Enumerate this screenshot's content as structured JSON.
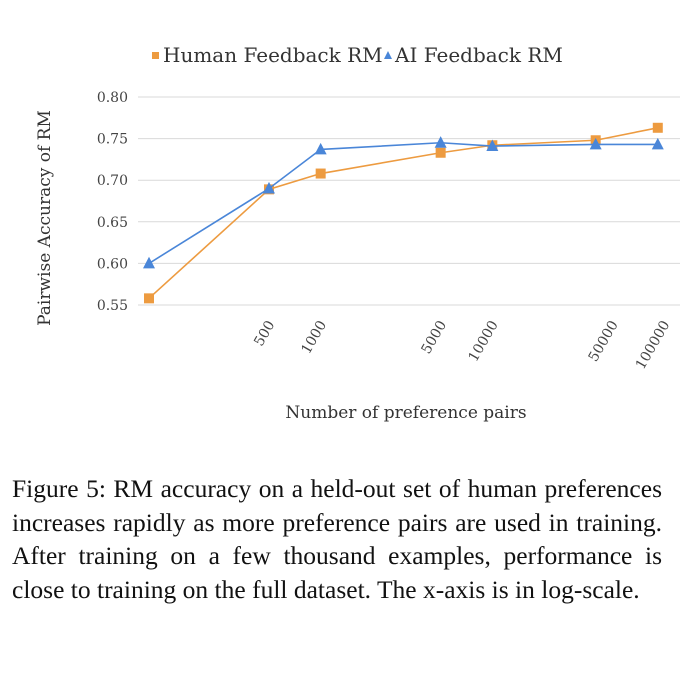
{
  "chart_data": {
    "type": "line",
    "xscale": "log",
    "xlabel": "Number of preference pairs",
    "ylabel": "Pairwise Accuracy of RM",
    "xticks": [
      500,
      1000,
      5000,
      10000,
      50000,
      100000
    ],
    "yticks": [
      "0.55",
      "0.60",
      "0.65",
      "0.70",
      "0.75",
      "0.80"
    ],
    "ylim": [
      0.55,
      0.8
    ],
    "grid": "horizontal",
    "legend": "top-center",
    "series": [
      {
        "name": "Human Feedback RM",
        "marker": "square",
        "color": "#ED9B40",
        "x": [
          100,
          500,
          1000,
          5000,
          10000,
          40000,
          92000
        ],
        "y": [
          0.558,
          0.689,
          0.708,
          0.733,
          0.742,
          0.748,
          0.763
        ]
      },
      {
        "name": "AI Feedback RM",
        "marker": "triangle",
        "color": "#4A86D8",
        "x": [
          100,
          500,
          1000,
          5000,
          10000,
          40000,
          92000
        ],
        "y": [
          0.6,
          0.69,
          0.737,
          0.745,
          0.741,
          0.743,
          0.743
        ]
      }
    ]
  },
  "caption": "Figure 5: RM accuracy on a held-out set of human preferences increases rapidly as more preference pairs are used in training. After training on a few thousand examples, performance is close to training on the full dataset. The x-axis is in log-scale."
}
